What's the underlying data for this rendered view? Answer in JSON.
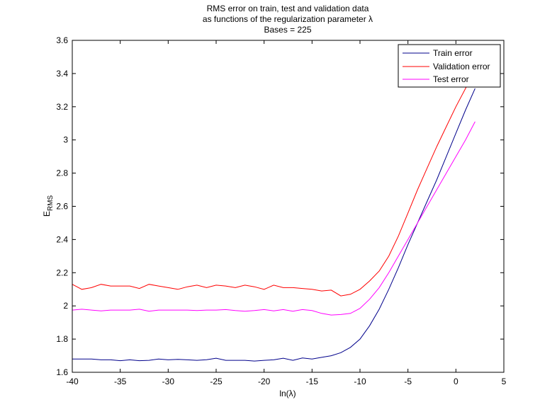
{
  "chart_data": {
    "type": "line",
    "title_lines": [
      "RMS error on train, test and validation data",
      "as functions of the regularization parameter λ",
      "Bases = 225"
    ],
    "xlabel": "ln(λ)",
    "ylabel_main": "E",
    "ylabel_sub": "RMS",
    "xlim": [
      -40,
      5
    ],
    "ylim": [
      1.6,
      3.6
    ],
    "xticks": [
      -40,
      -35,
      -30,
      -25,
      -20,
      -15,
      -10,
      -5,
      0,
      5
    ],
    "yticks": [
      1.6,
      1.8,
      2,
      2.2,
      2.4,
      2.6,
      2.8,
      3,
      3.2,
      3.4,
      3.6
    ],
    "ytick_labels": [
      "1.6",
      "1.8",
      "2",
      "2.2",
      "2.4",
      "2.6",
      "2.8",
      "3",
      "3.2",
      "3.4",
      "3.6"
    ],
    "grid": false,
    "legend_position": "top-right",
    "x": [
      -40,
      -39,
      -38,
      -37,
      -36,
      -35,
      -34,
      -33,
      -32,
      -31,
      -30,
      -29,
      -28,
      -27,
      -26,
      -25,
      -24,
      -23,
      -22,
      -21,
      -20,
      -19,
      -18,
      -17,
      -16,
      -15,
      -14,
      -13,
      -12,
      -11,
      -10,
      -9,
      -8,
      -7,
      -6,
      -5,
      -4,
      -3,
      -2,
      -1,
      0,
      1,
      2
    ],
    "series": [
      {
        "name": "Train error",
        "color": "#00008b",
        "values": [
          1.68,
          1.68,
          1.68,
          1.675,
          1.675,
          1.67,
          1.675,
          1.67,
          1.672,
          1.68,
          1.675,
          1.678,
          1.675,
          1.672,
          1.676,
          1.685,
          1.672,
          1.672,
          1.672,
          1.668,
          1.672,
          1.675,
          1.685,
          1.672,
          1.686,
          1.68,
          1.69,
          1.7,
          1.718,
          1.75,
          1.8,
          1.88,
          1.98,
          2.1,
          2.23,
          2.37,
          2.5,
          2.63,
          2.76,
          2.9,
          3.04,
          3.18,
          3.31
        ]
      },
      {
        "name": "Validation error",
        "color": "#ff0000",
        "values": [
          2.13,
          2.1,
          2.11,
          2.13,
          2.12,
          2.12,
          2.12,
          2.105,
          2.13,
          2.12,
          2.11,
          2.1,
          2.115,
          2.125,
          2.11,
          2.125,
          2.12,
          2.11,
          2.125,
          2.115,
          2.1,
          2.125,
          2.11,
          2.11,
          2.105,
          2.1,
          2.09,
          2.095,
          2.06,
          2.07,
          2.1,
          2.15,
          2.21,
          2.3,
          2.42,
          2.56,
          2.7,
          2.83,
          2.96,
          3.08,
          3.2,
          3.31,
          3.43
        ]
      },
      {
        "name": "Test error",
        "color": "#ff00ff",
        "values": [
          1.975,
          1.98,
          1.975,
          1.97,
          1.975,
          1.975,
          1.975,
          1.98,
          1.968,
          1.975,
          1.975,
          1.975,
          1.975,
          1.972,
          1.975,
          1.975,
          1.978,
          1.972,
          1.968,
          1.972,
          1.978,
          1.97,
          1.978,
          1.968,
          1.978,
          1.972,
          1.955,
          1.945,
          1.948,
          1.955,
          1.985,
          2.04,
          2.11,
          2.2,
          2.3,
          2.4,
          2.5,
          2.6,
          2.7,
          2.8,
          2.9,
          3.0,
          3.11
        ]
      }
    ]
  }
}
